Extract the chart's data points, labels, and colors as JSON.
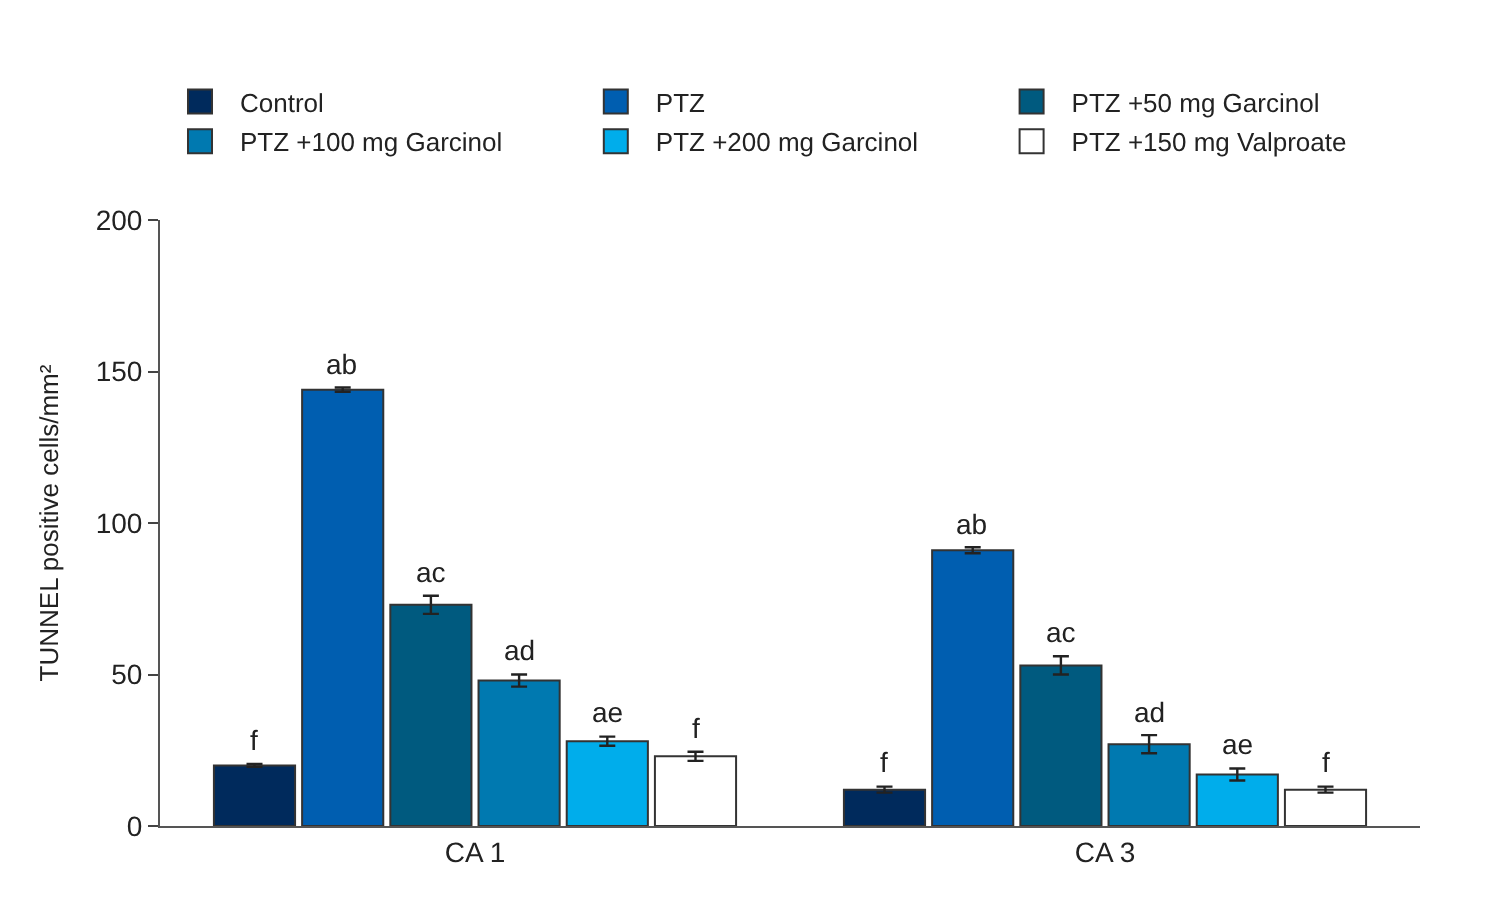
{
  "chart_data": {
    "type": "bar",
    "ylabel": "TUNNEL positive cells/mm²",
    "categories": [
      "CA 1",
      "CA 3"
    ],
    "ylim": [
      0,
      200
    ],
    "yticks": [
      0,
      50,
      100,
      150,
      200
    ],
    "legend": "top left",
    "series": [
      {
        "name": "Control",
        "color": "#002a5c",
        "values": [
          20,
          12
        ],
        "errors": [
          0.5,
          1
        ],
        "value_labels": [
          "f",
          "f"
        ]
      },
      {
        "name": "PTZ",
        "color": "#005eb0",
        "values": [
          144,
          91
        ],
        "errors": [
          0.7,
          1
        ],
        "value_labels": [
          "ab",
          "ab"
        ]
      },
      {
        "name": "PTZ +50 mg Garcinol",
        "color": "#005a7f",
        "values": [
          73,
          53
        ],
        "errors": [
          3,
          3
        ],
        "value_labels": [
          "ac",
          "ac"
        ]
      },
      {
        "name": "PTZ +100 mg Garcinol",
        "color": "#0079b0",
        "values": [
          48,
          27
        ],
        "errors": [
          2,
          3
        ],
        "value_labels": [
          "ad",
          "ad"
        ]
      },
      {
        "name": "PTZ +200 mg Garcinol",
        "color": "#00adeb",
        "values": [
          28,
          17
        ],
        "errors": [
          1.5,
          2
        ],
        "value_labels": [
          "ae",
          "ae"
        ]
      },
      {
        "name": "PTZ +150 mg Valproate",
        "color": "#ffffff",
        "values": [
          23,
          12
        ],
        "errors": [
          1.5,
          1
        ],
        "value_labels": [
          "f",
          "f"
        ]
      }
    ]
  }
}
